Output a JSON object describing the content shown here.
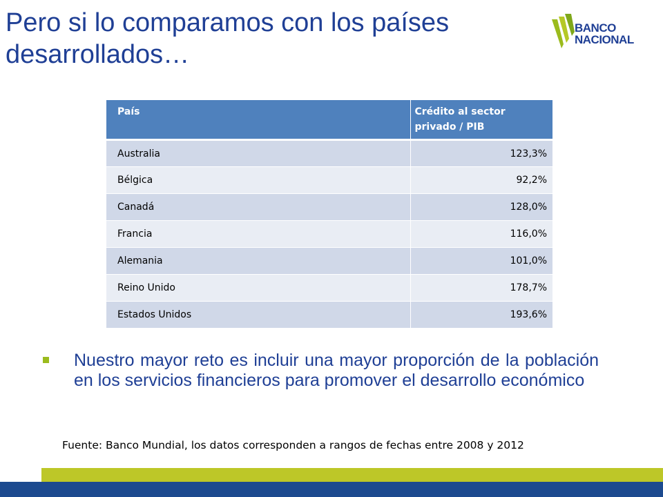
{
  "slide": {
    "title": "Pero si lo comparamos con los países desarrollados…",
    "logo": {
      "line1": "BANCO",
      "line2": "NACIONAL"
    }
  },
  "table": {
    "headers": [
      "País",
      "Crédito al sector privado / PIB"
    ],
    "rows": [
      {
        "country": "Australia",
        "value": "123,3%"
      },
      {
        "country": "Bélgica",
        "value": "92,2%"
      },
      {
        "country": "Canadá",
        "value": "128,0%"
      },
      {
        "country": "Francia",
        "value": "116,0%"
      },
      {
        "country": "Alemania",
        "value": "101,0%"
      },
      {
        "country": "Reino Unido",
        "value": "178,7%"
      },
      {
        "country": "Estados Unidos",
        "value": "193,6%"
      }
    ]
  },
  "bullet": "Nuestro mayor reto es incluir una mayor proporción de la población en los servicios financieros para promover el desarrollo económico",
  "source": "Fuente: Banco Mundial, los datos corresponden a rangos de fechas entre 2008 y 2012",
  "colors": {
    "title": "#1f3f95",
    "header_bg": "#4f81bd",
    "row_odd": "#d0d8e8",
    "row_even": "#e9edf4",
    "accent_green": "#bdc728",
    "footer_blue": "#1c4a8f"
  }
}
